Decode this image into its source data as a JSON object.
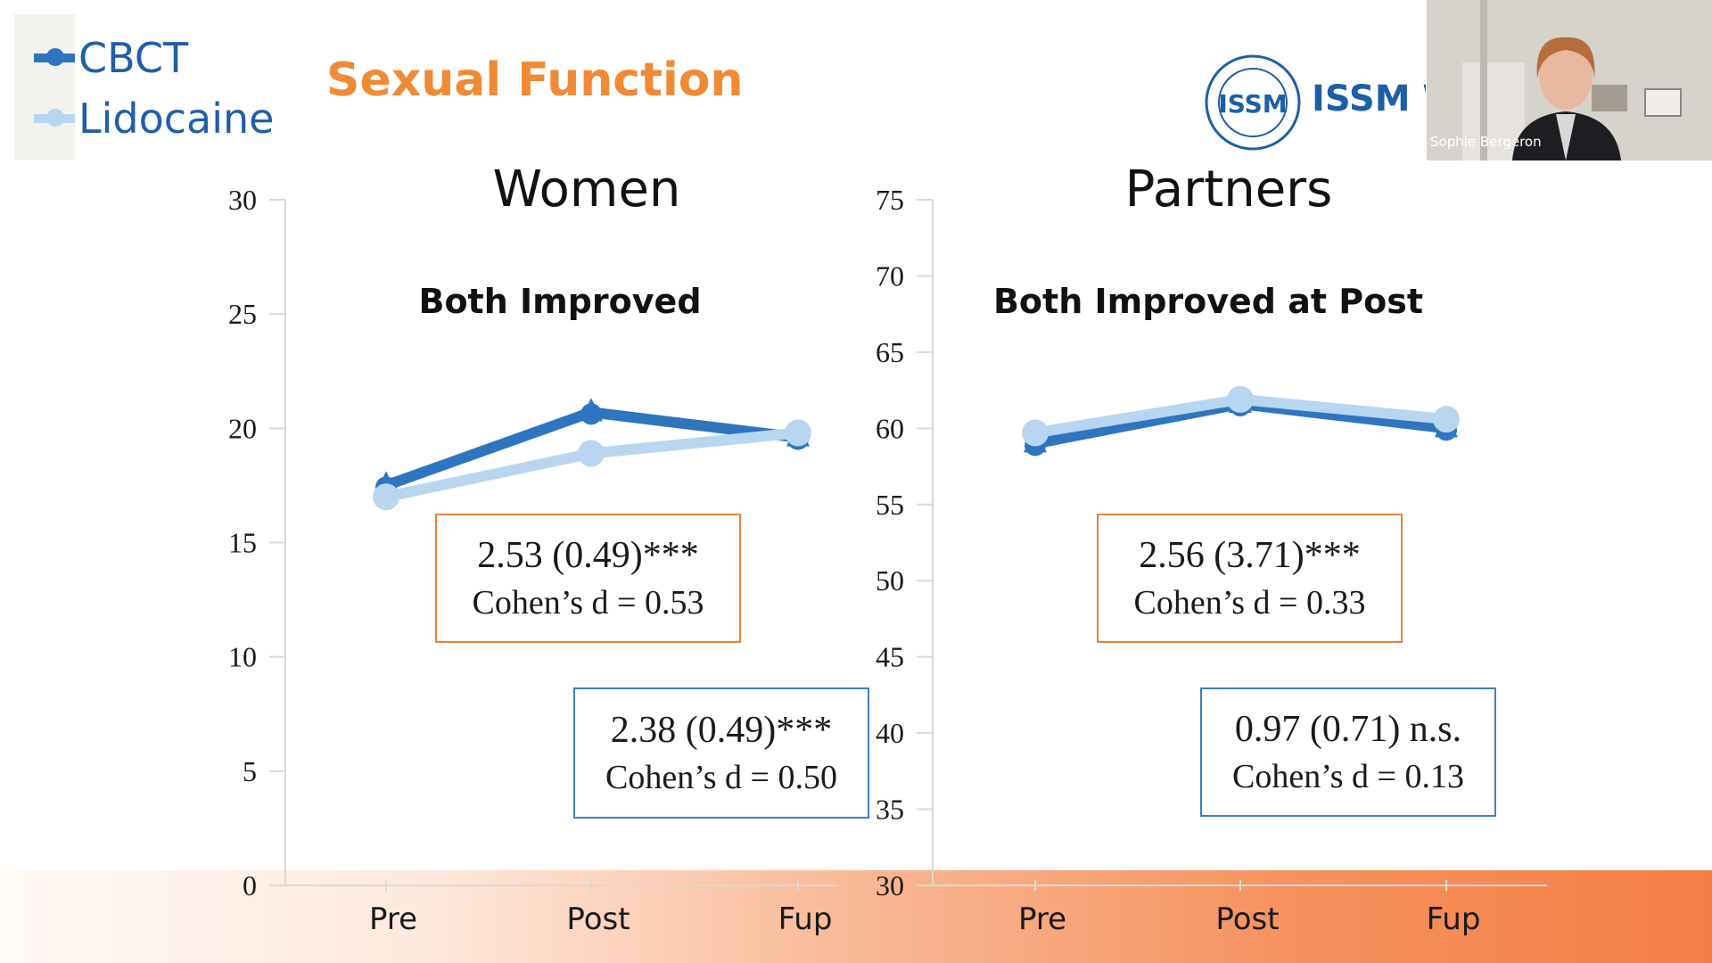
{
  "slide": {
    "title": "Sexual Function",
    "logo_text": "ISSM W",
    "logo_emblem_text": "ISSM",
    "presenter_name": "Sophie Bergeron"
  },
  "legend": [
    {
      "label": "CBCT",
      "color": "#2e75c0"
    },
    {
      "label": "Lidocaine",
      "color": "#b8d6f0"
    }
  ],
  "stats": {
    "women_cbct": {
      "line1": "2.53 (0.49)***",
      "line2": "Cohen’s d = 0.53"
    },
    "women_lido": {
      "line1": "2.38 (0.49)***",
      "line2": "Cohen’s d = 0.50"
    },
    "partners_cbct": {
      "line1": "2.56 (3.71)***",
      "line2": "Cohen’s d = 0.33"
    },
    "partners_lido": {
      "line1": "0.97 (0.71) n.s.",
      "line2": "Cohen’s d = 0.13"
    }
  },
  "chart_data": [
    {
      "type": "line",
      "title": "Women",
      "subtitle": "Both Improved",
      "categories": [
        "Pre",
        "Post",
        "Fup"
      ],
      "ylim": [
        0,
        30
      ],
      "yticks": [
        0,
        5,
        10,
        15,
        20,
        25,
        30
      ],
      "series": [
        {
          "name": "CBCT",
          "values": [
            17.5,
            20.7,
            19.6
          ],
          "color": "#2e75c0"
        },
        {
          "name": "Lidocaine",
          "values": [
            17.0,
            18.9,
            19.8
          ],
          "color": "#b8d6f0"
        }
      ]
    },
    {
      "type": "line",
      "title": "Partners",
      "subtitle": "Both Improved at Post",
      "categories": [
        "Pre",
        "Post",
        "Fup"
      ],
      "ylim": [
        30,
        75
      ],
      "yticks": [
        30,
        35,
        40,
        45,
        50,
        55,
        60,
        65,
        70,
        75
      ],
      "series": [
        {
          "name": "CBCT",
          "values": [
            59.0,
            61.6,
            60.0
          ],
          "color": "#2e75c0"
        },
        {
          "name": "Lidocaine",
          "values": [
            59.7,
            61.9,
            60.6
          ],
          "color": "#b8d6f0"
        }
      ]
    }
  ]
}
